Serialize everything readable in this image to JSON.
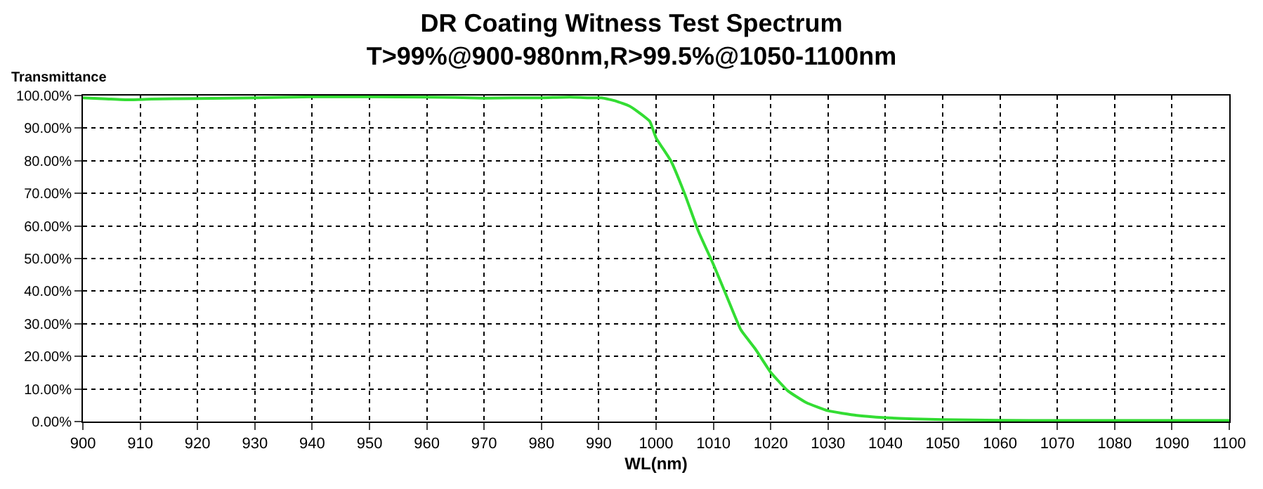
{
  "chart_data": {
    "type": "line",
    "title": "DR Coating Witness Test Spectrum",
    "subtitle": "T>99%@900-980nm,R>99.5%@1050-1100nm",
    "xlabel": "WL(nm)",
    "ylabel": "Transmittance",
    "series": [
      {
        "color": "#33dd33",
        "x": [
          900,
          904,
          908,
          912,
          920,
          930,
          940,
          950,
          960,
          965,
          970,
          975,
          980,
          985,
          988,
          990.5,
          993,
          995.3,
          997,
          998.9,
          1000,
          1002.6,
          1005,
          1007.4,
          1010,
          1012.4,
          1014.8,
          1017.3,
          1020,
          1023,
          1026.2,
          1030,
          1035,
          1040,
          1045,
          1050,
          1060,
          1070,
          1080,
          1090,
          1100
        ],
        "values": [
          99.3,
          99.0,
          98.7,
          98.9,
          99.1,
          99.3,
          99.6,
          99.6,
          99.5,
          99.4,
          99.2,
          99.3,
          99.3,
          99.5,
          99.3,
          99.3,
          98.3,
          96.8,
          94.8,
          92.1,
          87.0,
          79.9,
          69.8,
          58.3,
          48.2,
          38.1,
          28.1,
          22.3,
          15.1,
          9.4,
          5.8,
          3.3,
          1.9,
          1.2,
          0.8,
          0.6,
          0.4,
          0.3,
          0.3,
          0.3,
          0.3
        ]
      }
    ],
    "xlim": [
      900,
      1100
    ],
    "xticks": [
      900,
      910,
      920,
      930,
      940,
      950,
      960,
      970,
      980,
      990,
      1000,
      1010,
      1020,
      1030,
      1040,
      1050,
      1060,
      1070,
      1080,
      1090,
      1100
    ],
    "ylim": [
      0,
      100
    ],
    "yticks": [
      {
        "value": 0,
        "label": "0.00%"
      },
      {
        "value": 10,
        "label": "10.00%"
      },
      {
        "value": 20,
        "label": "20.00%"
      },
      {
        "value": 30,
        "label": "30.00%"
      },
      {
        "value": 40,
        "label": "40.00%"
      },
      {
        "value": 50,
        "label": "50.00%"
      },
      {
        "value": 60,
        "label": "60.00%"
      },
      {
        "value": 70,
        "label": "70.00%"
      },
      {
        "value": 80,
        "label": "80.00%"
      },
      {
        "value": 90,
        "label": "90.00%"
      },
      {
        "value": 100,
        "label": "100.00%"
      }
    ],
    "grid": true,
    "marker": "none",
    "line_style": "solid"
  }
}
